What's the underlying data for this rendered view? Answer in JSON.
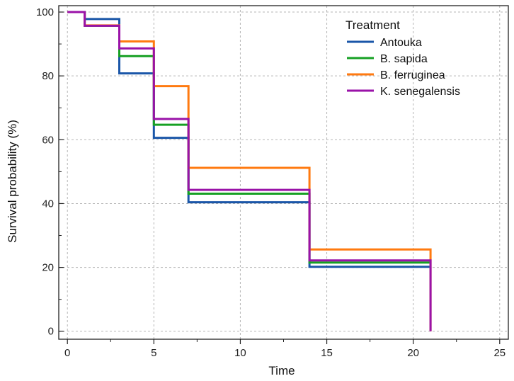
{
  "chart_data": {
    "type": "line",
    "step": true,
    "title": "",
    "xlabel": "Time",
    "ylabel": "Survival probability (%)",
    "xlim": [
      -0.5,
      25.5
    ],
    "ylim": [
      -2.5,
      102
    ],
    "xticks": [
      0,
      5,
      10,
      15,
      20,
      25
    ],
    "yticks": [
      0,
      20,
      40,
      60,
      80,
      100
    ],
    "grid": true,
    "legend_title": "Treatment",
    "legend_position": "top-right",
    "series": [
      {
        "name": "Antouka",
        "color": "#1a56a8",
        "x": [
          0,
          1,
          1,
          3,
          3,
          5,
          5,
          7,
          7,
          14,
          14,
          21
        ],
        "y": [
          100,
          100,
          97.8,
          97.8,
          80.8,
          80.8,
          60.6,
          60.6,
          40.4,
          40.4,
          20.2,
          20.2
        ]
      },
      {
        "name": "B. sapida",
        "color": "#16a023",
        "x": [
          0,
          1,
          1,
          3,
          3,
          5,
          5,
          7,
          7,
          14,
          14,
          21
        ],
        "y": [
          100,
          100,
          95.7,
          95.7,
          86.2,
          86.2,
          64.7,
          64.7,
          43.1,
          43.1,
          21.5,
          21.5
        ]
      },
      {
        "name": "B. ferruginea",
        "color": "#ff7a10",
        "x": [
          0,
          1,
          1,
          3,
          3,
          5,
          5,
          7,
          7,
          14,
          14,
          21,
          21
        ],
        "y": [
          100,
          100,
          95.8,
          95.8,
          90.8,
          90.8,
          76.8,
          76.8,
          51.2,
          51.2,
          25.6,
          25.6,
          0
        ]
      },
      {
        "name": "K. senegalensis",
        "color": "#9a12a8",
        "x": [
          0,
          1,
          1,
          3,
          3,
          5,
          5,
          7,
          7,
          14,
          14,
          21,
          21
        ],
        "y": [
          100,
          100,
          95.7,
          95.7,
          88.6,
          88.6,
          66.5,
          66.5,
          44.3,
          44.3,
          22.2,
          22.2,
          0
        ]
      }
    ]
  }
}
